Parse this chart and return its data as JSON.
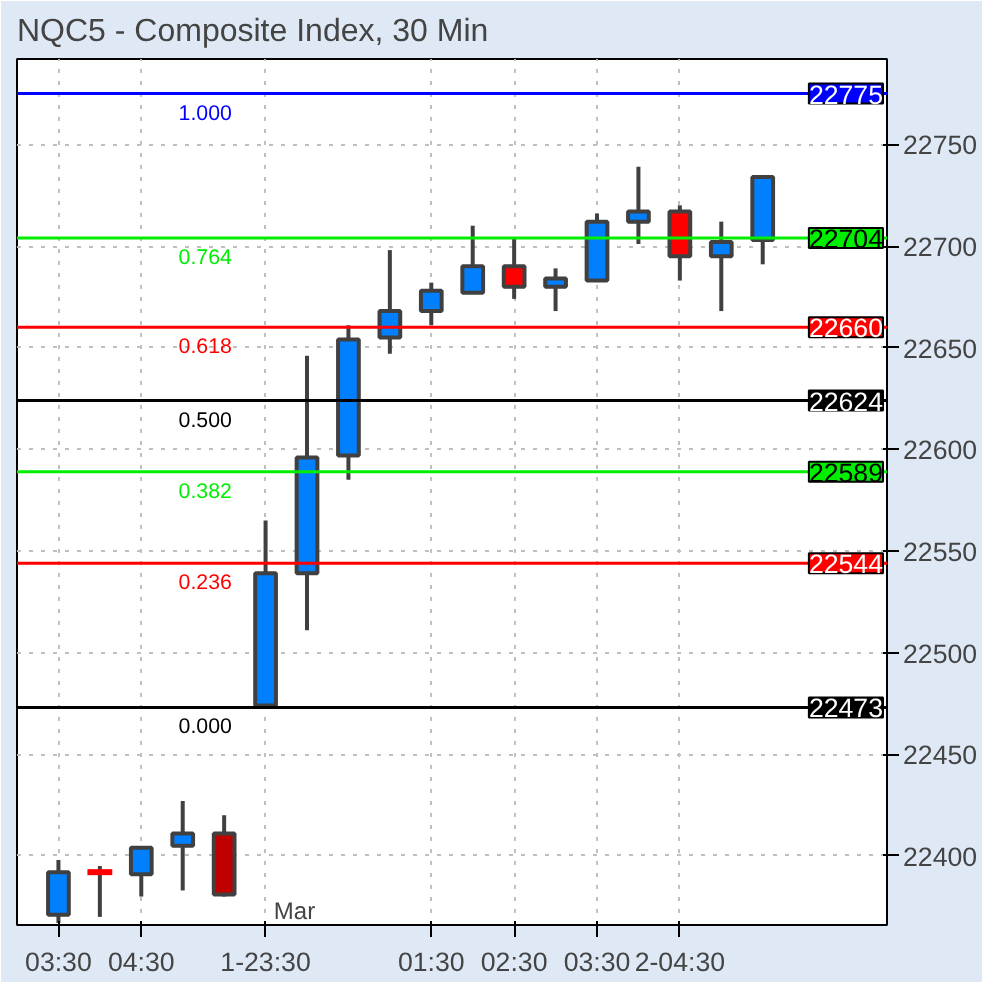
{
  "chart_data": {
    "type": "candlestick",
    "title": "NQC5 - Composite Index, 30 Min",
    "categories": [
      "03:30",
      null,
      "04:30",
      null,
      null,
      "1-23:30",
      null,
      null,
      null,
      "01:30",
      null,
      "02:30",
      null,
      "03:30",
      null,
      "2-04:30",
      null,
      null
    ],
    "ohlc": [
      [
        22371,
        22398,
        22367,
        22392
      ],
      [
        22392,
        22395,
        22370,
        22392
      ],
      [
        22391,
        22404,
        22380,
        22404
      ],
      [
        22405,
        22427,
        22383,
        22411
      ],
      [
        22411,
        22420,
        22380,
        22381
      ],
      [
        22474,
        22565,
        22473,
        22539
      ],
      [
        22539,
        22646,
        22511,
        22596
      ],
      [
        22597,
        22661,
        22585,
        22654
      ],
      [
        22655,
        22698,
        22647,
        22668
      ],
      [
        22668,
        22682,
        22661,
        22678
      ],
      [
        22677,
        22710,
        22677,
        22690
      ],
      [
        22690,
        22704,
        22674,
        22680
      ],
      [
        22680,
        22689,
        22668,
        22684
      ],
      [
        22683,
        22716,
        22683,
        22712
      ],
      [
        22712,
        22739,
        22701,
        22717
      ],
      [
        22717,
        22720,
        22683,
        22695
      ],
      [
        22695,
        22712,
        22668,
        22702
      ],
      [
        22703,
        22734,
        22691,
        22734
      ]
    ],
    "colors": [
      "#0080ff",
      "#ff0000",
      "#0080ff",
      "#0080ff",
      "#c00000",
      "#0080ff",
      "#0080ff",
      "#0080ff",
      "#0080ff",
      "#0080ff",
      "#0080ff",
      "#ff0000",
      "#0080ff",
      "#0080ff",
      "#0080ff",
      "#ff0000",
      "#0080ff",
      "#0080ff"
    ],
    "ylim": [
      22366,
      22792
    ],
    "yticks": [
      22400,
      22450,
      22500,
      22550,
      22600,
      22650,
      22700,
      22750
    ],
    "ref_lines": [
      {
        "axis": "y",
        "value": 22775,
        "label": "22775",
        "color": "#0000ff"
      },
      {
        "axis": "y",
        "value": 22704,
        "label": "22704",
        "color": "#00ee00"
      },
      {
        "axis": "y",
        "value": 22660,
        "label": "22660",
        "color": "#ff0000"
      },
      {
        "axis": "y",
        "value": 22624,
        "label": "22624",
        "color": "#000000"
      },
      {
        "axis": "y",
        "value": 22589,
        "label": "22589",
        "color": "#00ee00"
      },
      {
        "axis": "y",
        "value": 22544,
        "label": "22544",
        "color": "#ff0000"
      },
      {
        "axis": "y",
        "value": 22473,
        "label": "22473",
        "color": "#000000"
      }
    ],
    "annotations": [
      {
        "text": "1.000",
        "x": "1-23:30",
        "y": 22775
      },
      {
        "text": "0.764",
        "x": "1-23:30",
        "y": 22704
      },
      {
        "text": "0.618",
        "x": "1-23:30",
        "y": 22660
      },
      {
        "text": "0.500",
        "x": "1-23:30",
        "y": 22624
      },
      {
        "text": "0.382",
        "x": "1-23:30",
        "y": 22589
      },
      {
        "text": "0.236",
        "x": "1-23:30",
        "y": 22544
      },
      {
        "text": "0.000",
        "x": "1-23:30",
        "y": 22473
      },
      "Mar"
    ],
    "grid": true
  }
}
